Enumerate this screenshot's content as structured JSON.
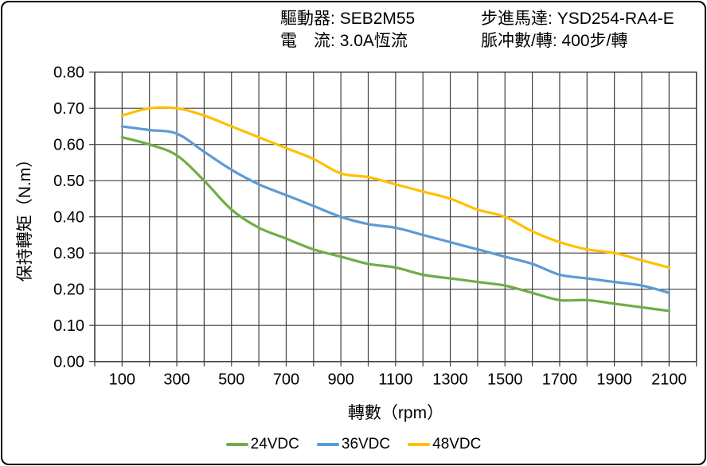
{
  "header": {
    "driver_label": "驅動器:",
    "driver_value": "SEB2M55",
    "current_label": "電　流:",
    "current_value": "3.0A恆流",
    "motor_label": "步進馬達:",
    "motor_value": "YSD254-RA4-E",
    "pulses_label": "脈冲數/轉:",
    "pulses_value": "400步/轉"
  },
  "chart_data": {
    "type": "line",
    "title": "",
    "xlabel": "轉數（rpm）",
    "ylabel": "保持轉矩（N.m）",
    "xlim": [
      0,
      2200
    ],
    "ylim": [
      0,
      0.8
    ],
    "x_grid_step": 100,
    "grid": true,
    "grid_color": "#3f3f3f",
    "legend_position": "bottom",
    "x_tick_labels": [
      100,
      300,
      500,
      700,
      900,
      1100,
      1300,
      1500,
      1700,
      1900,
      2100
    ],
    "y_ticks": [
      0.0,
      0.1,
      0.2,
      0.3,
      0.4,
      0.5,
      0.6,
      0.7,
      0.8
    ],
    "x": [
      100,
      200,
      300,
      400,
      500,
      600,
      700,
      800,
      900,
      1000,
      1100,
      1200,
      1300,
      1400,
      1500,
      1600,
      1700,
      1800,
      1900,
      2000,
      2100
    ],
    "series": [
      {
        "name": "24VDC",
        "color": "#70AD47",
        "values": [
          0.62,
          0.6,
          0.57,
          0.5,
          0.42,
          0.37,
          0.34,
          0.31,
          0.29,
          0.27,
          0.26,
          0.24,
          0.23,
          0.22,
          0.21,
          0.19,
          0.17,
          0.17,
          0.16,
          0.15,
          0.14
        ]
      },
      {
        "name": "36VDC",
        "color": "#5B9BD5",
        "values": [
          0.65,
          0.64,
          0.63,
          0.58,
          0.53,
          0.49,
          0.46,
          0.43,
          0.4,
          0.38,
          0.37,
          0.35,
          0.33,
          0.31,
          0.29,
          0.27,
          0.24,
          0.23,
          0.22,
          0.21,
          0.19
        ]
      },
      {
        "name": "48VDC",
        "color": "#FFC000",
        "values": [
          0.68,
          0.7,
          0.7,
          0.68,
          0.65,
          0.62,
          0.59,
          0.56,
          0.52,
          0.51,
          0.49,
          0.47,
          0.45,
          0.42,
          0.4,
          0.36,
          0.33,
          0.31,
          0.3,
          0.28,
          0.26
        ]
      }
    ]
  }
}
